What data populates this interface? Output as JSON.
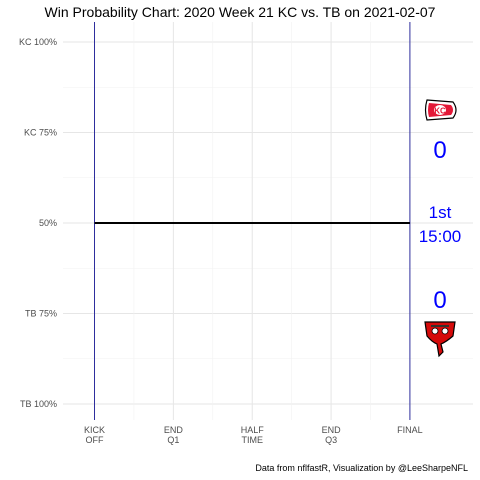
{
  "title": "Win Probability Chart: 2020 Week 21 KC vs. TB on 2021-02-07",
  "caption": "Data from nflfastR, Visualization by @LeeSharpeNFL",
  "chart_data": {
    "type": "line",
    "title": "Win Probability Chart: 2020 Week 21 KC vs. TB on 2021-02-07",
    "xlabel": "",
    "ylabel": "",
    "x_ticks": [
      {
        "value": 0,
        "lines": [
          "KICK",
          "OFF"
        ]
      },
      {
        "value": 900,
        "lines": [
          "END",
          "Q1"
        ]
      },
      {
        "value": 1800,
        "lines": [
          "HALF",
          "TIME"
        ]
      },
      {
        "value": 2700,
        "lines": [
          "END",
          "Q3"
        ]
      },
      {
        "value": 3600,
        "lines": [
          "FINAL"
        ]
      }
    ],
    "y_ticks": [
      {
        "value": 1.0,
        "label": "KC 100%"
      },
      {
        "value": 0.75,
        "label": "KC 75%"
      },
      {
        "value": 0.5,
        "label": "50%"
      },
      {
        "value": 0.25,
        "label": "TB 75%"
      },
      {
        "value": 0.0,
        "label": "TB 100%"
      }
    ],
    "xlim": [
      -360,
      4320
    ],
    "ylim": [
      0,
      1
    ],
    "grid": true,
    "series": [
      {
        "values": [
          {
            "x": 0,
            "y": 0.5
          },
          {
            "x": 3600,
            "y": 0.5
          }
        ],
        "color": "#000000"
      }
    ],
    "vlines": [
      0,
      3600
    ],
    "vline_color": "#00008b",
    "annotations": {
      "home_team": "KC",
      "away_team": "TB",
      "kc_score": "0",
      "tb_score": "0",
      "quarter": "1st",
      "clock": "15:00"
    }
  }
}
